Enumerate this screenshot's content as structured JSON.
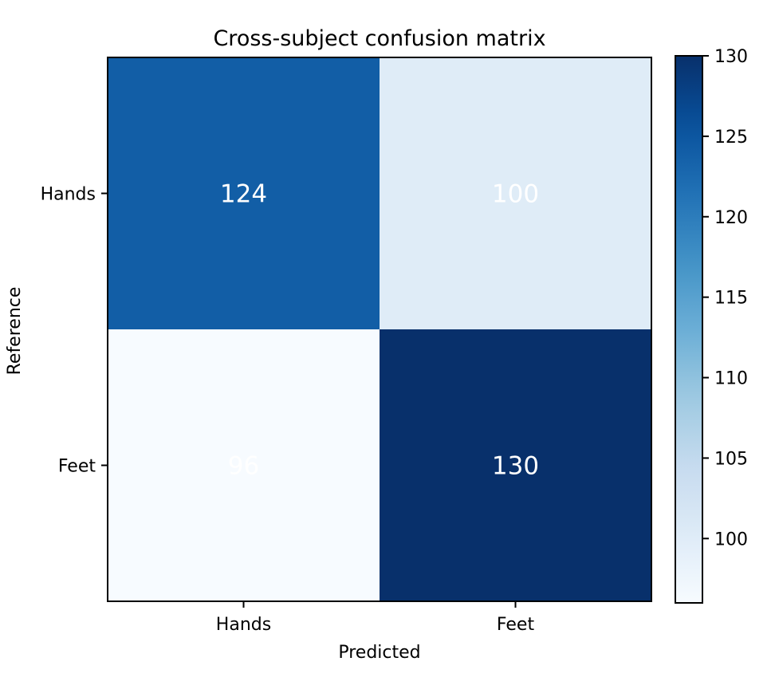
{
  "chart_data": {
    "type": "heatmap",
    "title": "Cross-subject confusion matrix",
    "xlabel": "Predicted",
    "ylabel": "Reference",
    "x_categories": [
      "Hands",
      "Feet"
    ],
    "y_categories": [
      "Hands",
      "Feet"
    ],
    "values": [
      [
        124,
        100
      ],
      [
        96,
        130
      ]
    ],
    "colormap": "Blues",
    "color_range": [
      96,
      130
    ],
    "colorbar_ticks": [
      100,
      105,
      110,
      115,
      120,
      125,
      130
    ],
    "cell_text_color": "#ffffff",
    "colors": {
      "low": "#f7fbff",
      "high": "#08306b"
    }
  }
}
